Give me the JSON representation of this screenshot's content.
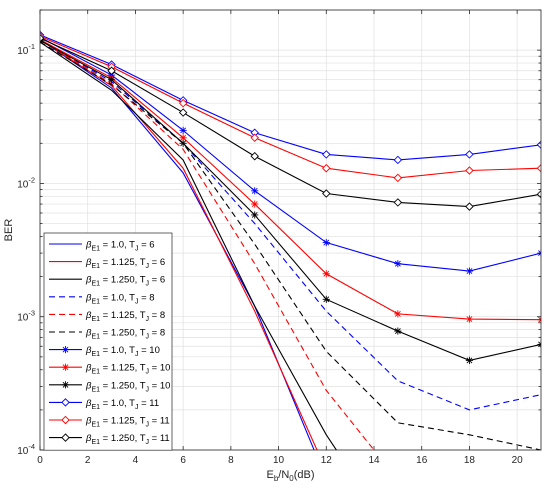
{
  "chart_data": {
    "type": "line",
    "xlabel": "E_b/N_0(dB)",
    "ylabel": "BER",
    "yscale": "log",
    "xlim": [
      0,
      21
    ],
    "ylim": [
      0.0001,
      0.2
    ],
    "grid": true,
    "legend_position": "bottom-left",
    "x_ticks": [
      "0",
      "2",
      "4",
      "6",
      "8",
      "10",
      "12",
      "14",
      "16",
      "18",
      "20"
    ],
    "y_ticks": [
      {
        "value": 0.1,
        "base": "10",
        "exp": "-1"
      },
      {
        "value": 0.01,
        "base": "10",
        "exp": "-2"
      },
      {
        "value": 0.001,
        "base": "10",
        "exp": "-3"
      },
      {
        "value": 0.0001,
        "base": "10",
        "exp": "-4"
      }
    ],
    "series": [
      {
        "name": "β_E1 = 1.0, T_J = 6",
        "label_main": "β",
        "label_sub": "E1",
        "label_mid": " = 1.0, T",
        "label_sub2": "J",
        "label_end": " = 6",
        "color": "#0000ff",
        "dash": "solid",
        "marker": "none",
        "x": [
          0,
          3,
          6,
          9,
          12
        ],
        "y": [
          0.12,
          0.052,
          0.012,
          0.0012,
          6e-05
        ]
      },
      {
        "name": "β_E1 = 1.125, T_J = 6",
        "label_main": "β",
        "label_sub": "E1",
        "label_mid": " = 1.125, T",
        "label_sub2": "J",
        "label_end": " = 6",
        "color": "#ff0000",
        "dash": "solid",
        "marker": "none",
        "x": [
          0,
          3,
          6,
          9,
          12
        ],
        "y": [
          0.12,
          0.054,
          0.013,
          0.0011,
          7e-05
        ]
      },
      {
        "name": "β_E1 = 1.250, T_J = 6",
        "label_main": "β",
        "label_sub": "E1",
        "label_mid": " = 1.250, T",
        "label_sub2": "J",
        "label_end": " = 6",
        "color": "#000000",
        "dash": "solid",
        "marker": "none",
        "x": [
          0,
          3,
          6,
          9,
          12,
          13
        ],
        "y": [
          0.115,
          0.05,
          0.015,
          0.0012,
          0.00013,
          7e-05
        ]
      },
      {
        "name": "β_E1 = 1.0, T_J = 8",
        "label_main": "β",
        "label_sub": "E1",
        "label_mid": " = 1.0, T",
        "label_sub2": "J",
        "label_end": " = 8",
        "color": "#0000ff",
        "dash": "dashed",
        "marker": "none",
        "x": [
          0,
          3,
          6,
          9,
          12,
          15,
          18,
          21
        ],
        "y": [
          0.12,
          0.058,
          0.02,
          0.005,
          0.0011,
          0.00033,
          0.0002,
          0.00026
        ]
      },
      {
        "name": "β_E1 = 1.125, T_J = 8",
        "label_main": "β",
        "label_sub": "E1",
        "label_mid": " = 1.125, T",
        "label_sub2": "J",
        "label_end": " = 8",
        "color": "#ff0000",
        "dash": "dashed",
        "marker": "none",
        "x": [
          0,
          3,
          6,
          9,
          12,
          14
        ],
        "y": [
          0.12,
          0.056,
          0.018,
          0.0025,
          0.00028,
          0.0001
        ]
      },
      {
        "name": "β_E1 = 1.250, T_J = 8",
        "label_main": "β",
        "label_sub": "E1",
        "label_mid": " = 1.250, T",
        "label_sub2": "J",
        "label_end": " = 8",
        "color": "#000000",
        "dash": "dashed",
        "marker": "none",
        "x": [
          0,
          3,
          6,
          9,
          12,
          15,
          18,
          21
        ],
        "y": [
          0.115,
          0.055,
          0.02,
          0.0035,
          0.00055,
          0.00016,
          0.00013,
          0.0001
        ]
      },
      {
        "name": "β_E1 = 1.0, T_J = 10",
        "label_main": "β",
        "label_sub": "E1",
        "label_mid": " = 1.0, T",
        "label_sub2": "J",
        "label_end": " = 10",
        "color": "#0000ff",
        "dash": "solid",
        "marker": "star",
        "x": [
          0,
          3,
          6,
          9,
          12,
          15,
          18,
          21
        ],
        "y": [
          0.125,
          0.065,
          0.025,
          0.0088,
          0.0036,
          0.0025,
          0.0022,
          0.003
        ]
      },
      {
        "name": "β_E1 = 1.125, T_J = 10",
        "label_main": "β",
        "label_sub": "E1",
        "label_mid": " = 1.125, T",
        "label_sub2": "J",
        "label_end": " = 10",
        "color": "#ff0000",
        "dash": "solid",
        "marker": "star",
        "x": [
          0,
          3,
          6,
          9,
          12,
          15,
          18,
          21
        ],
        "y": [
          0.12,
          0.062,
          0.022,
          0.007,
          0.0021,
          0.00105,
          0.00096,
          0.00095
        ]
      },
      {
        "name": "β_E1 = 1.250, T_J = 10",
        "label_main": "β",
        "label_sub": "E1",
        "label_mid": " = 1.250, T",
        "label_sub2": "J",
        "label_end": " = 10",
        "color": "#000000",
        "dash": "solid",
        "marker": "star",
        "x": [
          0,
          3,
          6,
          9,
          12,
          15,
          18,
          21
        ],
        "y": [
          0.118,
          0.06,
          0.02,
          0.0058,
          0.00135,
          0.00078,
          0.00047,
          0.00062
        ]
      },
      {
        "name": "β_E1 = 1.0, T_J = 11",
        "label_main": "β",
        "label_sub": "E1",
        "label_mid": " = 1.0, T",
        "label_sub2": "J",
        "label_end": " = 11",
        "color": "#0000ff",
        "dash": "solid",
        "marker": "diamond",
        "x": [
          0,
          3,
          6,
          9,
          12,
          15,
          18,
          21
        ],
        "y": [
          0.13,
          0.078,
          0.042,
          0.024,
          0.0165,
          0.015,
          0.0165,
          0.0195
        ]
      },
      {
        "name": "β_E1 = 1.125, T_J = 11",
        "label_main": "β",
        "label_sub": "E1",
        "label_mid": " = 1.125, T",
        "label_sub2": "J",
        "label_end": " = 11",
        "color": "#ff0000",
        "dash": "solid",
        "marker": "diamond",
        "x": [
          0,
          3,
          6,
          9,
          12,
          15,
          18,
          21
        ],
        "y": [
          0.127,
          0.075,
          0.04,
          0.022,
          0.013,
          0.011,
          0.0125,
          0.013
        ]
      },
      {
        "name": "β_E1 = 1.250, T_J = 11",
        "label_main": "β",
        "label_sub": "E1",
        "label_mid": " = 1.250, T",
        "label_sub2": "J",
        "label_end": " = 11",
        "color": "#000000",
        "dash": "solid",
        "marker": "diamond",
        "x": [
          0,
          3,
          6,
          9,
          12,
          15,
          18,
          21
        ],
        "y": [
          0.123,
          0.07,
          0.034,
          0.016,
          0.0084,
          0.0072,
          0.0067,
          0.0083
        ]
      }
    ]
  }
}
